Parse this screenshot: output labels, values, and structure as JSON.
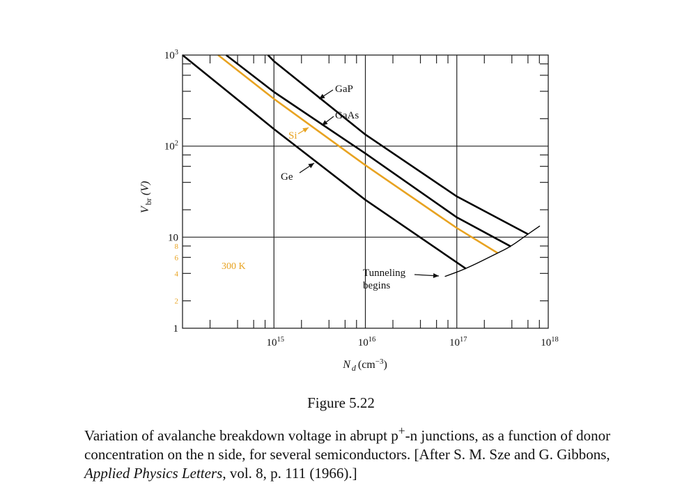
{
  "figure": {
    "title": "Figure 5.22",
    "caption_parts": [
      "Variation of avalanche breakdown voltage in abrupt p",
      "+",
      "-n junctions, as a function of donor concentration on the n side, for several semiconductors. [After S. M. Sze and G. Gibbons, ",
      "Applied Physics Letters",
      ", vol. 8, p. 111 (1966).]"
    ]
  },
  "colors": {
    "line": "#000000",
    "accent": "#e8a321",
    "grid": "#222222"
  },
  "chart_data": {
    "type": "line",
    "title": "",
    "xlabel": "N_d (cm^-3)",
    "ylabel": "V_br (V)",
    "xscale": "log",
    "yscale": "log",
    "xlim": [
      100000000000000.0,
      1e+18
    ],
    "ylim": [
      1,
      1000
    ],
    "x_ticks": [
      {
        "value": 1000000000000000.0,
        "label": "10^15"
      },
      {
        "value": 1e+16,
        "label": "10^16"
      },
      {
        "value": 1e+17,
        "label": "10^17"
      },
      {
        "value": 1e+18,
        "label": "10^18"
      }
    ],
    "y_ticks": [
      {
        "value": 1,
        "label": "1",
        "color": "#111111"
      },
      {
        "value": 2,
        "label": "2",
        "color": "#e8a321"
      },
      {
        "value": 4,
        "label": "4",
        "color": "#e8a321"
      },
      {
        "value": 6,
        "label": "6",
        "color": "#e8a321"
      },
      {
        "value": 8,
        "label": "8",
        "color": "#e8a321"
      },
      {
        "value": 10,
        "label": "10",
        "color": "#111111"
      },
      {
        "value": 100,
        "label": "10^2",
        "color": "#111111"
      },
      {
        "value": 1000,
        "label": "10^3",
        "color": "#111111"
      }
    ],
    "grid": "decade lines",
    "annotation_temperature": "300 K",
    "series": [
      {
        "name": "Ge",
        "color": "#000000",
        "x": [
          100000000000000.0,
          1000000000000000.0,
          1e+16,
          1.26e+17
        ],
        "y": [
          1000,
          154,
          25.7,
          4.5
        ]
      },
      {
        "name": "Si",
        "color": "#e8a321",
        "x": [
          245000000000000.0,
          1000000000000000.0,
          1e+16,
          1e+17,
          2.8e+17
        ],
        "y": [
          1000,
          330,
          61.7,
          12.6,
          6.7
        ]
      },
      {
        "name": "GaAs",
        "color": "#000000",
        "x": [
          300000000000000.0,
          1000000000000000.0,
          1e+16,
          1e+17,
          3.9e+17
        ],
        "y": [
          1000,
          393,
          83,
          16.5,
          7.9
        ]
      },
      {
        "name": "GaP",
        "color": "#000000",
        "x": [
          860000000000000.0,
          1000000000000000.0,
          1e+16,
          1e+17,
          6e+17
        ],
        "y": [
          1000,
          855,
          134,
          28,
          10.8
        ]
      },
      {
        "name": "Tunneling begins",
        "color": "#000000",
        "x": [
          7.4e+16,
          1.26e+17,
          2.8e+17,
          3.9e+17,
          6e+17,
          8.1e+17
        ],
        "y": [
          3.7,
          4.5,
          6.7,
          7.9,
          10.8,
          13.3
        ]
      }
    ],
    "labels": {
      "GaP": "GaP",
      "GaAs": "GaAs",
      "Si": "Si",
      "Ge": "Ge",
      "tunneling_line1": "Tunneling",
      "tunneling_line2": "begins"
    }
  }
}
